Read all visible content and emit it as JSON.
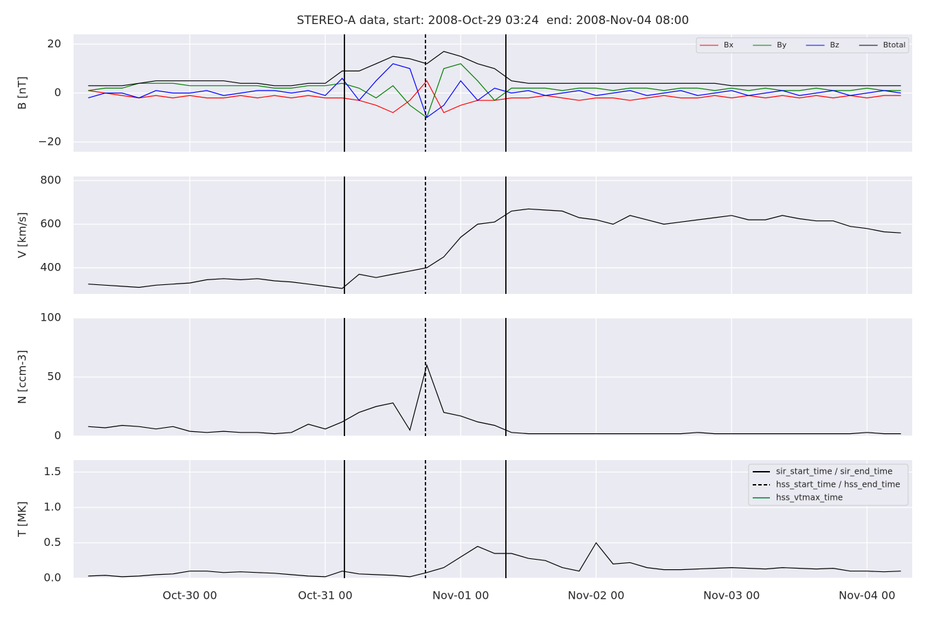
{
  "chart_data": [
    {
      "type": "line",
      "title": "STEREO-A data, start: 2008-Oct-29 03:24  end: 2008-Nov-04 08:00",
      "ylabel": "B [nT]",
      "xlim": [
        "2008-10-29 03:24",
        "2008-11-04 08:00"
      ],
      "ylim": [
        -24,
        24
      ],
      "yticks": [
        {
          "value": -20,
          "label": "−20"
        },
        0,
        20
      ],
      "xticks": [
        "2008-10-30 00:00",
        "2008-10-31 00:00",
        "2008-11-01 00:00",
        "2008-11-02 00:00",
        "2008-11-03 00:00",
        "2008-11-04 00:00"
      ],
      "grid": true,
      "legend": "upper right",
      "x": [
        "2008-10-29 06:00",
        "2008-10-29 09:00",
        "2008-10-29 12:00",
        "2008-10-29 15:00",
        "2008-10-29 18:00",
        "2008-10-29 21:00",
        "2008-10-30 00:00",
        "2008-10-30 03:00",
        "2008-10-30 06:00",
        "2008-10-30 09:00",
        "2008-10-30 12:00",
        "2008-10-30 15:00",
        "2008-10-30 18:00",
        "2008-10-30 21:00",
        "2008-10-31 00:00",
        "2008-10-31 03:00",
        "2008-10-31 06:00",
        "2008-10-31 09:00",
        "2008-10-31 12:00",
        "2008-10-31 15:00",
        "2008-10-31 18:00",
        "2008-10-31 21:00",
        "2008-11-01 00:00",
        "2008-11-01 03:00",
        "2008-11-01 06:00",
        "2008-11-01 09:00",
        "2008-11-01 12:00",
        "2008-11-01 15:00",
        "2008-11-01 18:00",
        "2008-11-01 21:00",
        "2008-11-02 00:00",
        "2008-11-02 03:00",
        "2008-11-02 06:00",
        "2008-11-02 09:00",
        "2008-11-02 12:00",
        "2008-11-02 15:00",
        "2008-11-02 18:00",
        "2008-11-02 21:00",
        "2008-11-03 00:00",
        "2008-11-03 03:00",
        "2008-11-03 06:00",
        "2008-11-03 09:00",
        "2008-11-03 12:00",
        "2008-11-03 15:00",
        "2008-11-03 18:00",
        "2008-11-03 21:00",
        "2008-11-04 00:00",
        "2008-11-04 03:00",
        "2008-11-04 06:00"
      ],
      "series": [
        {
          "name": "Bx",
          "color": "#ff0000",
          "values": [
            1,
            0,
            -1,
            -2,
            -1,
            -2,
            -1,
            -2,
            -2,
            -1,
            -2,
            -1,
            -2,
            -1,
            -2,
            -2,
            -3,
            -5,
            -8,
            -3,
            5,
            -8,
            -5,
            -3,
            -3,
            -2,
            -2,
            -1,
            -2,
            -3,
            -2,
            -2,
            -3,
            -2,
            -1,
            -2,
            -2,
            -1,
            -2,
            -1,
            -2,
            -1,
            -2,
            -1,
            -2,
            -1,
            -2,
            -1,
            -1
          ]
        },
        {
          "name": "By",
          "color": "#008000",
          "values": [
            1,
            2,
            2,
            4,
            4,
            4,
            3,
            3,
            3,
            3,
            3,
            2,
            2,
            3,
            3,
            4,
            2,
            -2,
            3,
            -5,
            -10,
            10,
            12,
            5,
            -3,
            2,
            2,
            2,
            1,
            2,
            2,
            1,
            2,
            2,
            1,
            2,
            2,
            1,
            2,
            1,
            2,
            1,
            1,
            2,
            1,
            1,
            2,
            1,
            1
          ]
        },
        {
          "name": "Bz",
          "color": "#0000ff",
          "values": [
            -2,
            0,
            0,
            -2,
            1,
            0,
            0,
            1,
            -1,
            0,
            1,
            1,
            0,
            1,
            -1,
            6,
            -3,
            5,
            12,
            10,
            -10,
            -5,
            5,
            -3,
            2,
            0,
            1,
            -1,
            0,
            1,
            -1,
            0,
            1,
            -1,
            0,
            1,
            -1,
            0,
            1,
            -1,
            0,
            1,
            -1,
            0,
            1,
            -1,
            0,
            1,
            0
          ]
        },
        {
          "name": "Btotal",
          "color": "#000000",
          "values": [
            3,
            3,
            3,
            4,
            5,
            5,
            5,
            5,
            5,
            4,
            4,
            3,
            3,
            4,
            4,
            9,
            9,
            12,
            15,
            14,
            12,
            17,
            15,
            12,
            10,
            5,
            4,
            4,
            4,
            4,
            4,
            4,
            4,
            4,
            4,
            4,
            4,
            4,
            3,
            3,
            3,
            3,
            3,
            3,
            3,
            3,
            3,
            3,
            3
          ]
        }
      ],
      "vlines": [
        {
          "x": "2008-10-31 03:24",
          "style": "solid"
        },
        {
          "x": "2008-10-31 17:45",
          "style": "dashed"
        },
        {
          "x": "2008-11-01 08:00",
          "style": "solid"
        }
      ]
    },
    {
      "type": "line",
      "ylabel": "V [km/s]",
      "xlim": [
        "2008-10-29 03:24",
        "2008-11-04 08:00"
      ],
      "ylim": [
        280,
        819
      ],
      "yticks": [
        400,
        600,
        800
      ],
      "xticks": [
        "2008-10-30 00:00",
        "2008-10-31 00:00",
        "2008-11-01 00:00",
        "2008-11-02 00:00",
        "2008-11-03 00:00",
        "2008-11-04 00:00"
      ],
      "grid": true,
      "x": [
        "2008-10-29 06:00",
        "2008-10-29 09:00",
        "2008-10-29 12:00",
        "2008-10-29 15:00",
        "2008-10-29 18:00",
        "2008-10-29 21:00",
        "2008-10-30 00:00",
        "2008-10-30 03:00",
        "2008-10-30 06:00",
        "2008-10-30 09:00",
        "2008-10-30 12:00",
        "2008-10-30 15:00",
        "2008-10-30 18:00",
        "2008-10-30 21:00",
        "2008-10-31 00:00",
        "2008-10-31 03:00",
        "2008-10-31 06:00",
        "2008-10-31 09:00",
        "2008-10-31 12:00",
        "2008-10-31 15:00",
        "2008-10-31 18:00",
        "2008-10-31 21:00",
        "2008-11-01 00:00",
        "2008-11-01 03:00",
        "2008-11-01 06:00",
        "2008-11-01 09:00",
        "2008-11-01 12:00",
        "2008-11-01 15:00",
        "2008-11-01 18:00",
        "2008-11-01 21:00",
        "2008-11-02 00:00",
        "2008-11-02 03:00",
        "2008-11-02 06:00",
        "2008-11-02 09:00",
        "2008-11-02 12:00",
        "2008-11-02 15:00",
        "2008-11-02 18:00",
        "2008-11-02 21:00",
        "2008-11-03 00:00",
        "2008-11-03 03:00",
        "2008-11-03 06:00",
        "2008-11-03 09:00",
        "2008-11-03 12:00",
        "2008-11-03 15:00",
        "2008-11-03 18:00",
        "2008-11-03 21:00",
        "2008-11-04 00:00",
        "2008-11-04 03:00",
        "2008-11-04 06:00"
      ],
      "series": [
        {
          "name": "V",
          "color": "#000000",
          "values": [
            325,
            320,
            315,
            310,
            320,
            325,
            330,
            345,
            350,
            345,
            350,
            340,
            335,
            325,
            315,
            305,
            370,
            355,
            370,
            385,
            400,
            450,
            540,
            600,
            610,
            660,
            670,
            665,
            660,
            630,
            620,
            600,
            640,
            620,
            600,
            610,
            620,
            630,
            640,
            620,
            620,
            640,
            625,
            615,
            615,
            590,
            580,
            565,
            560
          ]
        }
      ],
      "vlines": [
        {
          "x": "2008-10-31 03:24",
          "style": "solid"
        },
        {
          "x": "2008-10-31 17:45",
          "style": "dashed"
        },
        {
          "x": "2008-11-01 08:00",
          "style": "solid"
        }
      ]
    },
    {
      "type": "line",
      "ylabel": "N [ccm-3]",
      "xlim": [
        "2008-10-29 03:24",
        "2008-11-04 08:00"
      ],
      "ylim": [
        0,
        100
      ],
      "yticks": [
        0,
        50,
        100
      ],
      "xticks": [
        "2008-10-30 00:00",
        "2008-10-31 00:00",
        "2008-11-01 00:00",
        "2008-11-02 00:00",
        "2008-11-03 00:00",
        "2008-11-04 00:00"
      ],
      "grid": true,
      "x": [
        "2008-10-29 06:00",
        "2008-10-29 09:00",
        "2008-10-29 12:00",
        "2008-10-29 15:00",
        "2008-10-29 18:00",
        "2008-10-29 21:00",
        "2008-10-30 00:00",
        "2008-10-30 03:00",
        "2008-10-30 06:00",
        "2008-10-30 09:00",
        "2008-10-30 12:00",
        "2008-10-30 15:00",
        "2008-10-30 18:00",
        "2008-10-30 21:00",
        "2008-10-31 00:00",
        "2008-10-31 03:00",
        "2008-10-31 06:00",
        "2008-10-31 09:00",
        "2008-10-31 12:00",
        "2008-10-31 15:00",
        "2008-10-31 18:00",
        "2008-10-31 21:00",
        "2008-11-01 00:00",
        "2008-11-01 03:00",
        "2008-11-01 06:00",
        "2008-11-01 09:00",
        "2008-11-01 12:00",
        "2008-11-01 15:00",
        "2008-11-01 18:00",
        "2008-11-01 21:00",
        "2008-11-02 00:00",
        "2008-11-02 03:00",
        "2008-11-02 06:00",
        "2008-11-02 09:00",
        "2008-11-02 12:00",
        "2008-11-02 15:00",
        "2008-11-02 18:00",
        "2008-11-02 21:00",
        "2008-11-03 00:00",
        "2008-11-03 03:00",
        "2008-11-03 06:00",
        "2008-11-03 09:00",
        "2008-11-03 12:00",
        "2008-11-03 15:00",
        "2008-11-03 18:00",
        "2008-11-03 21:00",
        "2008-11-04 00:00",
        "2008-11-04 03:00",
        "2008-11-04 06:00"
      ],
      "series": [
        {
          "name": "N",
          "color": "#000000",
          "values": [
            8,
            7,
            9,
            8,
            6,
            8,
            4,
            3,
            4,
            3,
            3,
            2,
            3,
            10,
            6,
            12,
            20,
            25,
            28,
            5,
            60,
            20,
            17,
            12,
            9,
            3,
            2,
            2,
            2,
            2,
            2,
            2,
            2,
            2,
            2,
            2,
            3,
            2,
            2,
            2,
            2,
            2,
            2,
            2,
            2,
            2,
            3,
            2,
            2
          ]
        }
      ],
      "vlines": [
        {
          "x": "2008-10-31 03:24",
          "style": "solid"
        },
        {
          "x": "2008-10-31 17:45",
          "style": "dashed"
        },
        {
          "x": "2008-11-01 08:00",
          "style": "solid"
        }
      ]
    },
    {
      "type": "line",
      "ylabel": "T [MK]",
      "xlim": [
        "2008-10-29 03:24",
        "2008-11-04 08:00"
      ],
      "ylim": [
        0,
        1.67
      ],
      "yticks": [
        {
          "value": 0,
          "label": "0.0"
        },
        0.5,
        {
          "value": 1,
          "label": "1.0"
        },
        1.5
      ],
      "xticks": [
        {
          "value": "2008-10-30 00:00",
          "label": "Oct-30 00"
        },
        {
          "value": "2008-10-31 00:00",
          "label": "Oct-31 00"
        },
        {
          "value": "2008-11-01 00:00",
          "label": "Nov-01 00"
        },
        {
          "value": "2008-11-02 00:00",
          "label": "Nov-02 00"
        },
        {
          "value": "2008-11-03 00:00",
          "label": "Nov-03 00"
        },
        {
          "value": "2008-11-04 00:00",
          "label": "Nov-04 00"
        }
      ],
      "grid": true,
      "legend": "upper right",
      "x": [
        "2008-10-29 06:00",
        "2008-10-29 09:00",
        "2008-10-29 12:00",
        "2008-10-29 15:00",
        "2008-10-29 18:00",
        "2008-10-29 21:00",
        "2008-10-30 00:00",
        "2008-10-30 03:00",
        "2008-10-30 06:00",
        "2008-10-30 09:00",
        "2008-10-30 12:00",
        "2008-10-30 15:00",
        "2008-10-30 18:00",
        "2008-10-30 21:00",
        "2008-10-31 00:00",
        "2008-10-31 03:00",
        "2008-10-31 06:00",
        "2008-10-31 09:00",
        "2008-10-31 12:00",
        "2008-10-31 15:00",
        "2008-10-31 18:00",
        "2008-10-31 21:00",
        "2008-11-01 00:00",
        "2008-11-01 03:00",
        "2008-11-01 06:00",
        "2008-11-01 09:00",
        "2008-11-01 12:00",
        "2008-11-01 15:00",
        "2008-11-01 18:00",
        "2008-11-01 21:00",
        "2008-11-02 00:00",
        "2008-11-02 03:00",
        "2008-11-02 06:00",
        "2008-11-02 09:00",
        "2008-11-02 12:00",
        "2008-11-02 15:00",
        "2008-11-02 18:00",
        "2008-11-02 21:00",
        "2008-11-03 00:00",
        "2008-11-03 03:00",
        "2008-11-03 06:00",
        "2008-11-03 09:00",
        "2008-11-03 12:00",
        "2008-11-03 15:00",
        "2008-11-03 18:00",
        "2008-11-03 21:00",
        "2008-11-04 00:00",
        "2008-11-04 03:00",
        "2008-11-04 06:00"
      ],
      "series": [
        {
          "name": "T",
          "color": "#000000",
          "values": [
            0.03,
            0.04,
            0.02,
            0.03,
            0.05,
            0.06,
            0.1,
            0.1,
            0.08,
            0.09,
            0.08,
            0.07,
            0.05,
            0.03,
            0.02,
            0.1,
            0.06,
            0.05,
            0.04,
            0.02,
            0.08,
            0.15,
            0.3,
            0.45,
            0.35,
            0.35,
            0.28,
            0.25,
            0.15,
            0.1,
            0.5,
            0.2,
            0.22,
            0.15,
            0.12,
            0.12,
            0.13,
            0.14,
            0.15,
            0.14,
            0.13,
            0.15,
            0.14,
            0.13,
            0.14,
            0.1,
            0.1,
            0.09,
            0.1
          ]
        }
      ],
      "vlines": [
        {
          "x": "2008-10-31 03:24",
          "style": "solid"
        },
        {
          "x": "2008-10-31 17:45",
          "style": "dashed"
        },
        {
          "x": "2008-11-01 08:00",
          "style": "solid"
        }
      ],
      "vline_legend": [
        {
          "label": "sir_start_time / sir_end_time",
          "style": "solid",
          "color": "#000000"
        },
        {
          "label": "hss_start_time / hss_end_time",
          "style": "dashed",
          "color": "#000000"
        },
        {
          "label": "hss_vtmax_time",
          "style": "solid",
          "color": "#2ca25f"
        }
      ]
    }
  ]
}
